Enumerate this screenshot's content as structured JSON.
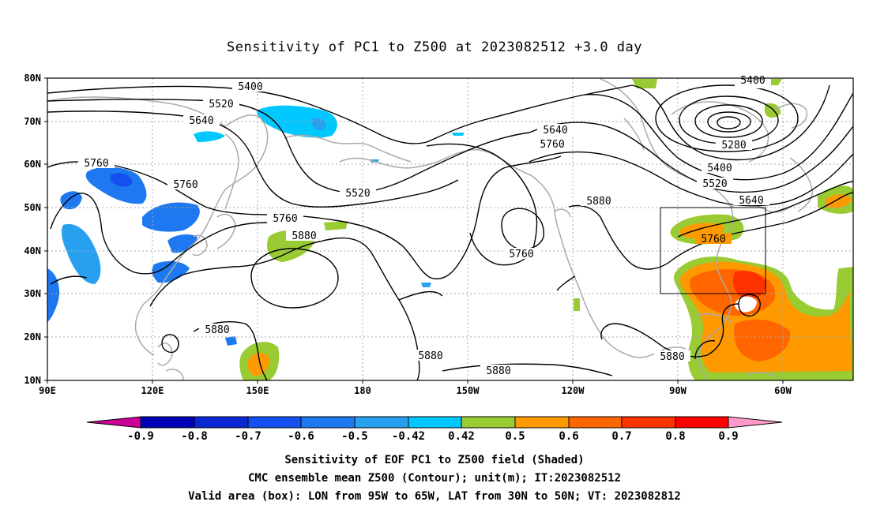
{
  "title": "Sensitivity of PC1 to Z500 at 2023082512 +3.0 day",
  "captions": {
    "line1": "Sensitivity of EOF PC1 to Z500 field (Shaded)",
    "line2": "CMC ensemble mean Z500 (Contour); unit(m); IT:2023082512",
    "line3": "Valid area (box): LON from 95W to 65W, LAT from 30N to 50N; VT: 2023082812"
  },
  "axes": {
    "lat_ticks": [
      "80N",
      "70N",
      "60N",
      "50N",
      "40N",
      "30N",
      "20N",
      "10N"
    ],
    "lon_ticks": [
      "90E",
      "120E",
      "150E",
      "180",
      "150W",
      "120W",
      "90W",
      "60W"
    ]
  },
  "contour_labels": {
    "l5400a": "5400",
    "l5520a": "5520",
    "l5640a": "5640",
    "l5760a": "5760",
    "l5760b": "5760",
    "l5520b": "5520",
    "l5760c": "5760",
    "l5880a": "5880",
    "l5640b": "5640",
    "l5760d": "5760",
    "l5760e": "5760",
    "l5880b": "5880",
    "l5400b": "5400",
    "l5280": "5280",
    "l5400c": "5400",
    "l5520c": "5520",
    "l5640c": "5640",
    "l5760f": "5760",
    "l5880c": "5880",
    "l5880d": "5880",
    "l5880e": "5880",
    "l5880f": "5880"
  },
  "colorbar": {
    "labels": [
      "-0.9",
      "-0.8",
      "-0.7",
      "-0.6",
      "-0.5",
      "-0.42",
      "0.42",
      "0.5",
      "0.6",
      "0.7",
      "0.8",
      "0.9"
    ],
    "colors": {
      "below": "#cc0099",
      "c1": "#0000b4",
      "c2": "#0a28d2",
      "c3": "#1450f0",
      "c4": "#1e78f0",
      "c5": "#28a0f0",
      "c6": "#00c8ff",
      "c7": "#ffffff",
      "c8": "#99cc33",
      "c9": "#ff9900",
      "c10": "#ff6600",
      "c11": "#ff3300",
      "c12": "#ff0000",
      "above": "#ff99cc"
    }
  },
  "colors": {
    "coast": "#aaaaaa",
    "grid": "#aaaaaa",
    "contour": "#000000"
  }
}
